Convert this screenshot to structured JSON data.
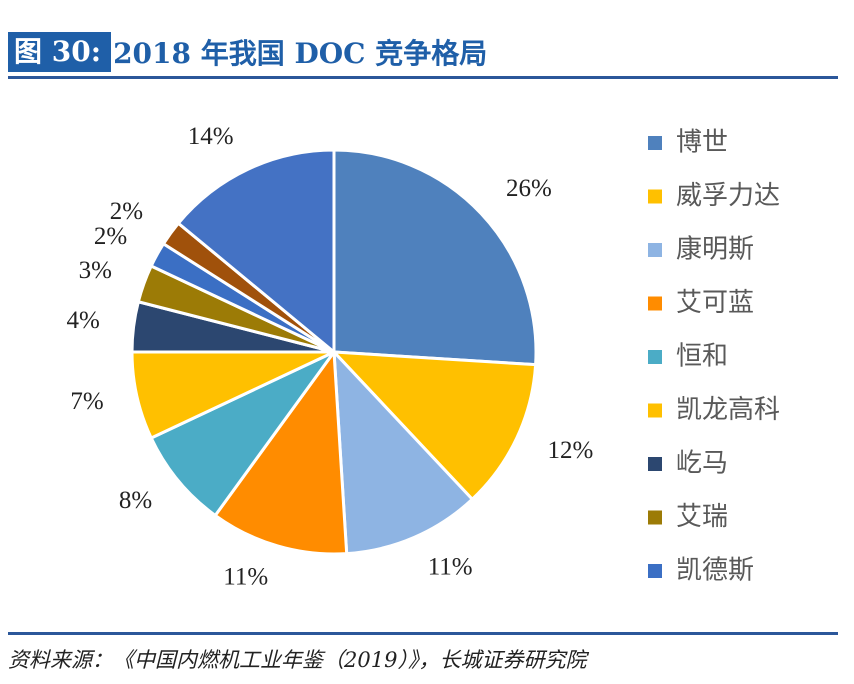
{
  "figure": {
    "label": "图 30:",
    "title": "2018 年我国 DOC 竞争格局"
  },
  "source": "资料来源：《中国内燃机工业年鉴（2019）》，长城证券研究院",
  "chart_data": {
    "type": "pie",
    "title": "",
    "legend_position": "right",
    "slices": [
      {
        "name": "博世",
        "value": 26,
        "label": "26%",
        "color": "#4f81bd"
      },
      {
        "name": "威孚力达",
        "value": 12,
        "label": "12%",
        "color": "#ffc000"
      },
      {
        "name": "康明斯",
        "value": 11,
        "label": "11%",
        "color": "#8eb4e3"
      },
      {
        "name": "艾可蓝",
        "value": 11,
        "label": "11%",
        "color": "#ff8c00"
      },
      {
        "name": "恒和",
        "value": 8,
        "label": "8%",
        "color": "#4bacc6"
      },
      {
        "name": "凯龙高科",
        "value": 7,
        "label": "7%",
        "color": "#ffc000"
      },
      {
        "name": "屹马",
        "value": 4,
        "label": "4%",
        "color": "#2c4770"
      },
      {
        "name": "艾瑞",
        "value": 3,
        "label": "3%",
        "color": "#9c7b06"
      },
      {
        "name": "",
        "value": 2,
        "label": "2%",
        "color": "#3b6fc4"
      },
      {
        "name": "",
        "value": 2,
        "label": "2%",
        "color": "#a0510b"
      },
      {
        "name": "凯德斯",
        "value": 14,
        "label": "14%",
        "color": "#4472c4"
      }
    ],
    "legend": [
      {
        "name": "博世",
        "color": "#4f81bd"
      },
      {
        "name": "威孚力达",
        "color": "#ffc000"
      },
      {
        "name": "康明斯",
        "color": "#8eb4e3"
      },
      {
        "name": "艾可蓝",
        "color": "#ff8c00"
      },
      {
        "name": "恒和",
        "color": "#4bacc6"
      },
      {
        "name": "凯龙高科",
        "color": "#ffc000"
      },
      {
        "name": "屹马",
        "color": "#2c4770"
      },
      {
        "name": "艾瑞",
        "color": "#9c7b06"
      },
      {
        "name": "凯德斯",
        "color": "#3b6fc4"
      }
    ]
  }
}
